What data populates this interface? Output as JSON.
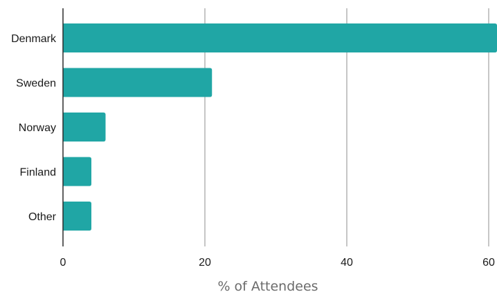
{
  "chart_data": {
    "type": "bar",
    "orientation": "horizontal",
    "categories": [
      "Denmark",
      "Sweden",
      "Norway",
      "Finland",
      "Other"
    ],
    "values": [
      61.5,
      21,
      6,
      4,
      4
    ],
    "xlabel": "% of Attendees",
    "ylabel": "",
    "xlim": [
      0,
      60
    ],
    "xticks": [
      0,
      20,
      40,
      60
    ],
    "xtick_labels": [
      "0",
      "20",
      "40",
      "60"
    ],
    "grid": "vertical",
    "legend": "none",
    "colors": {
      "bar": "#20a6a5",
      "grid": "#b3b3b3",
      "axis": "#2b2b2b"
    }
  }
}
